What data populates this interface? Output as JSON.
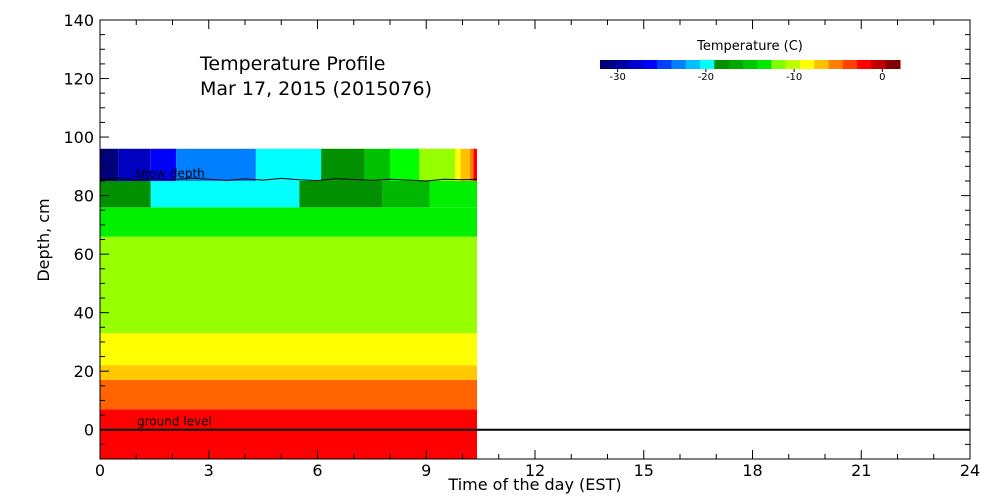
{
  "chart_data": {
    "type": "heatmap",
    "title": "Temperature Profile",
    "subtitle": "Mar 17, 2015 (2015076)",
    "xlabel": "Time of the day (EST)",
    "ylabel": "Depth, cm",
    "xlim": [
      0,
      24
    ],
    "ylim": [
      -10,
      140
    ],
    "x_ticks": [
      0,
      3,
      6,
      9,
      12,
      15,
      18,
      21,
      24
    ],
    "y_ticks": [
      0,
      20,
      40,
      60,
      80,
      100,
      120,
      140
    ],
    "grid": false,
    "data_end_time": 10.4,
    "colorbar": {
      "title": "Temperature (C)",
      "range": [
        -32,
        2
      ],
      "ticks": [
        -30,
        -20,
        -10,
        0
      ],
      "palette": [
        "#00007a",
        "#0000a0",
        "#0000d0",
        "#0000ff",
        "#0040ff",
        "#0080ff",
        "#00c0ff",
        "#00ffff",
        "#009000",
        "#00a800",
        "#00c800",
        "#00e800",
        "#80ff00",
        "#c0ff00",
        "#ffff00",
        "#ffc000",
        "#ff8000",
        "#ff4000",
        "#ff0000",
        "#c00000",
        "#800000"
      ]
    },
    "layers": [
      {
        "y0": -10,
        "y1": 7,
        "color": "#ff0000"
      },
      {
        "y0": 7,
        "y1": 17,
        "color": "#ff6400"
      },
      {
        "y0": 17,
        "y1": 22,
        "color": "#ffc800"
      },
      {
        "y0": 22,
        "y1": 33,
        "color": "#ffff00"
      },
      {
        "y0": 33,
        "y1": 66,
        "color": "#96ff00"
      },
      {
        "y0": 66,
        "y1": 76,
        "color": "#00f000"
      }
    ],
    "cells": [
      {
        "x0": 0,
        "x1": 1.4,
        "y0": 76,
        "y1": 85,
        "color": "#009000"
      },
      {
        "x0": 1.4,
        "x1": 5.5,
        "y0": 76,
        "y1": 85,
        "color": "#00ffff"
      },
      {
        "x0": 5.5,
        "x1": 7.8,
        "y0": 76,
        "y1": 85,
        "color": "#009000"
      },
      {
        "x0": 7.8,
        "x1": 9.1,
        "y0": 76,
        "y1": 85,
        "color": "#00b800"
      },
      {
        "x0": 9.1,
        "x1": 10.4,
        "y0": 76,
        "y1": 85,
        "color": "#00f000"
      },
      {
        "x0": 0,
        "x1": 0.5,
        "y0": 85,
        "y1": 96,
        "color": "#00007a"
      },
      {
        "x0": 0.5,
        "x1": 1.4,
        "y0": 85,
        "y1": 96,
        "color": "#0000c0"
      },
      {
        "x0": 1.4,
        "x1": 2.1,
        "y0": 85,
        "y1": 96,
        "color": "#0000ff"
      },
      {
        "x0": 2.1,
        "x1": 4.3,
        "y0": 85,
        "y1": 96,
        "color": "#0080ff"
      },
      {
        "x0": 4.3,
        "x1": 6.1,
        "y0": 85,
        "y1": 96,
        "color": "#00ffff"
      },
      {
        "x0": 6.1,
        "x1": 7.3,
        "y0": 85,
        "y1": 96,
        "color": "#009000"
      },
      {
        "x0": 7.3,
        "x1": 8.0,
        "y0": 85,
        "y1": 96,
        "color": "#00c000"
      },
      {
        "x0": 8.0,
        "x1": 8.8,
        "y0": 85,
        "y1": 96,
        "color": "#00ff00"
      },
      {
        "x0": 8.8,
        "x1": 9.8,
        "y0": 85,
        "y1": 96,
        "color": "#96ff00"
      },
      {
        "x0": 9.8,
        "x1": 9.95,
        "y0": 85,
        "y1": 96,
        "color": "#ffff00"
      },
      {
        "x0": 9.95,
        "x1": 10.2,
        "y0": 85,
        "y1": 96,
        "color": "#ffc000"
      },
      {
        "x0": 10.2,
        "x1": 10.3,
        "y0": 85,
        "y1": 96,
        "color": "#ff8000"
      },
      {
        "x0": 10.3,
        "x1": 10.4,
        "y0": 85,
        "y1": 96,
        "color": "#ff0000"
      }
    ],
    "snow_depth": {
      "label": "snow depth",
      "t": [
        0,
        0.5,
        1,
        1.5,
        2,
        2.5,
        3,
        3.5,
        4,
        4.5,
        5,
        5.5,
        6,
        6.5,
        7,
        7.5,
        8,
        8.5,
        9,
        9.5,
        10,
        10.4
      ],
      "depth": [
        85.5,
        86.0,
        85.2,
        85.8,
        85.4,
        86.0,
        85.6,
        85.2,
        85.7,
        85.3,
        85.9,
        85.4,
        85.1,
        85.8,
        85.5,
        85.2,
        85.6,
        85.3,
        85.0,
        85.6,
        85.4,
        85.6
      ]
    },
    "ground_level": {
      "label": "ground level",
      "depth": 0
    }
  }
}
